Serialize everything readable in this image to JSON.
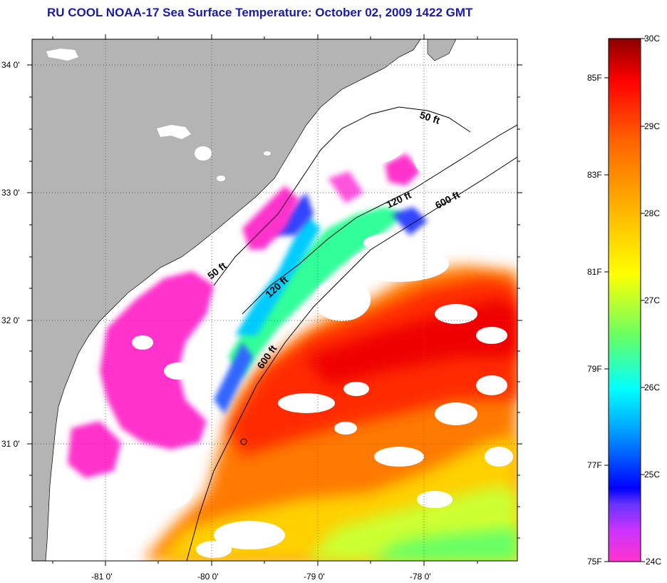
{
  "title": "RU COOL  NOAA-17  Sea Surface Temperature:  October 02, 2009 1422 GMT",
  "map": {
    "lat_ticks": [
      "34 0'",
      "33 0'",
      "32 0'",
      "31 0'"
    ],
    "lon_ticks": [
      "-81 0'",
      "-80 0'",
      "-79 0'",
      "-78 0'"
    ],
    "contour_labels": [
      "50 ft",
      "120 ft",
      "600 ft",
      "50 ft",
      "120 ft",
      "600 ft"
    ],
    "colors": {
      "land": "#b4b4b4",
      "cloud": "#ffffff",
      "grid": "#666666"
    }
  },
  "colorbar": {
    "fahrenheit_labels": [
      "85F",
      "83F",
      "81F",
      "79F",
      "77F",
      "75F"
    ],
    "celsius_labels": [
      "30C",
      "29C",
      "28C",
      "27C",
      "26C",
      "25C",
      "24C"
    ],
    "stops": [
      "#ff33cc",
      "#9933ff",
      "#0000ff",
      "#00a0ff",
      "#00ffff",
      "#66ff66",
      "#ffff00",
      "#ffb000",
      "#ff6600",
      "#ff0000",
      "#8b0000"
    ]
  }
}
